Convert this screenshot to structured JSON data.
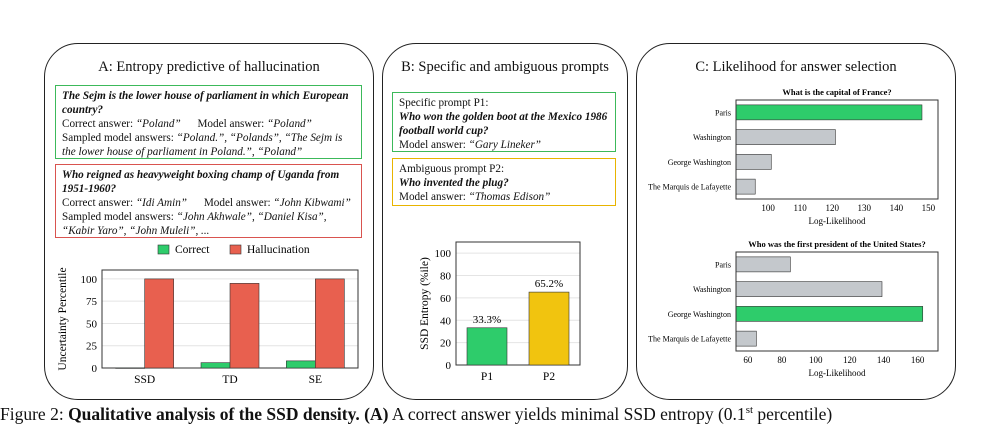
{
  "panelA": {
    "title": "A: Entropy predictive of hallucination",
    "box1": {
      "question": "The Sejm is the lower house of parliament in which European country?",
      "correct_label": "Correct answer: ",
      "correct_value": "“Poland”",
      "model_label": "Model answer: ",
      "model_value": "“Poland”",
      "sampled_label": "Sampled model answers: ",
      "sampled_value": "“Poland.”, “Polands”, “The Sejm is the lower house of parliament in Poland.”, “Poland”"
    },
    "box2": {
      "question": "Who reigned as heavyweight boxing champ of Uganda from 1951-1960?",
      "correct_label": "Correct answer: ",
      "correct_value": "“Idi Amin”",
      "model_label": "Model answer: ",
      "model_value": "“John Kibwami”",
      "sampled_label": "Sampled model answers: ",
      "sampled_value": "“John Akhwale”, “Daniel Kisa”, “Kabir Yaro”, “John Muleli”, ..."
    }
  },
  "panelB": {
    "title": "B: Specific and ambiguous prompts",
    "box1": {
      "header": "Specific prompt P1:",
      "question": "Who won the golden boot at the Mexico 1986 football world cup?",
      "model_label": "Model answer: ",
      "model_value": "“Gary Lineker”"
    },
    "box2": {
      "header": "Ambiguous prompt P2:",
      "question": "Who invented the plug?",
      "model_label": "Model answer: ",
      "model_value": "“Thomas Edison”"
    }
  },
  "panelC": {
    "title": "C: Likelihood for answer selection"
  },
  "colors": {
    "green": "#2ecc6b",
    "red": "#e8604f",
    "yellow": "#f1c40f",
    "gray": "#c4c8cc"
  },
  "chart_data": [
    {
      "type": "bar",
      "ylabel": "Uncertainty Percentile",
      "categories": [
        "SSD",
        "TD",
        "SE"
      ],
      "ylim": [
        0,
        110
      ],
      "yticks": [
        0,
        25,
        50,
        75,
        100
      ],
      "legend_position": "top",
      "series": [
        {
          "name": "Correct",
          "color": "#2ecc6b",
          "values": [
            0.1,
            6,
            8
          ]
        },
        {
          "name": "Hallucination",
          "color": "#e8604f",
          "values": [
            100,
            95,
            100
          ]
        }
      ]
    },
    {
      "type": "bar",
      "ylabel": "SSD Entropy (%ile)",
      "categories": [
        "P1",
        "P2"
      ],
      "ylim": [
        0,
        110
      ],
      "yticks": [
        0,
        20,
        40,
        60,
        80,
        100
      ],
      "values": [
        33.3,
        65.2
      ],
      "value_labels": [
        "33.3%",
        "65.2%"
      ],
      "colors": [
        "#2ecc6b",
        "#f1c40f"
      ]
    },
    {
      "type": "bar",
      "orientation": "horizontal",
      "title": "What is the capital of France?",
      "xlabel": "Log-Likelihood",
      "categories": [
        "Paris",
        "Washington",
        "George Washington",
        "The Marquis de Lafayette"
      ],
      "values": [
        148,
        121,
        101,
        96
      ],
      "xlim": [
        90,
        153
      ],
      "xticks": [
        100,
        110,
        120,
        130,
        140,
        150
      ],
      "colors": [
        "#2ecc6b",
        "#c4c8cc",
        "#c4c8cc",
        "#c4c8cc"
      ]
    },
    {
      "type": "bar",
      "orientation": "horizontal",
      "title": "Who was the first president of the United States?",
      "xlabel": "Log-Likelihood",
      "categories": [
        "Paris",
        "Washington",
        "George Washington",
        "The Marquis de Lafayette"
      ],
      "values": [
        85,
        139,
        163,
        65
      ],
      "xlim": [
        53,
        172
      ],
      "xticks": [
        60,
        80,
        100,
        120,
        140,
        160
      ],
      "colors": [
        "#c4c8cc",
        "#c4c8cc",
        "#2ecc6b",
        "#c4c8cc"
      ]
    }
  ],
  "caption": {
    "prefix": "Figure 2: ",
    "bold": "Qualitative analysis of the SSD density.",
    "bold2": " (A)",
    "rest": " A correct answer yields minimal SSD entropy (0.1",
    "sup": "st",
    "end": " percentile)"
  }
}
